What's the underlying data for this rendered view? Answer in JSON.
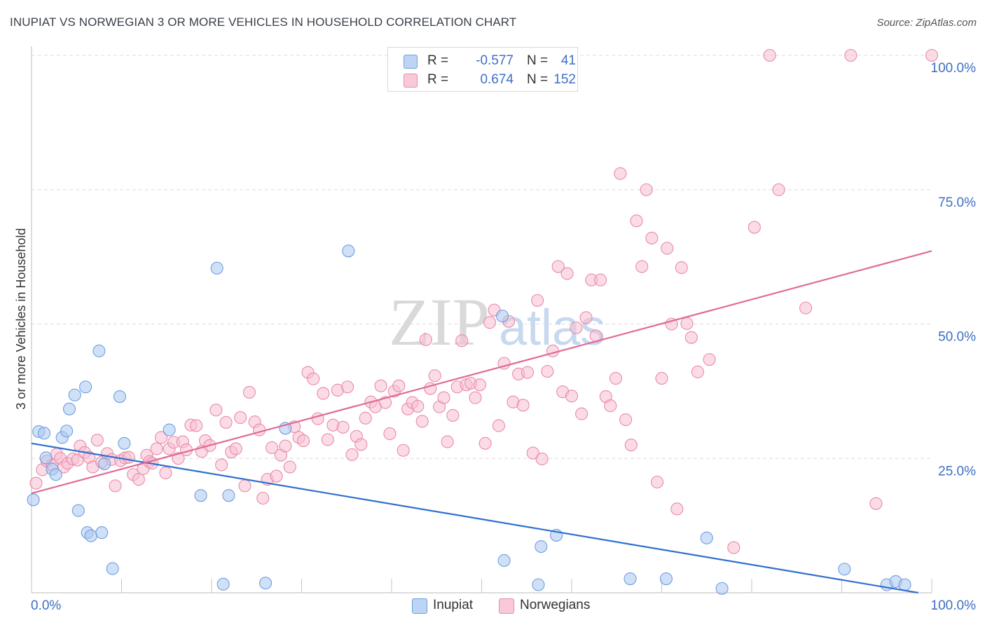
{
  "title": "INUPIAT VS NORWEGIAN 3 OR MORE VEHICLES IN HOUSEHOLD CORRELATION CHART",
  "source": "Source: ZipAtlas.com",
  "watermark": {
    "zip": "ZIP",
    "atlas": "atlas"
  },
  "legend": {
    "rows": [
      {
        "r_label": "R =",
        "r_value": "-0.577",
        "n_label": "N =",
        "n_value": "41",
        "color": "#a9c8f0",
        "border": "#6f9ee0"
      },
      {
        "r_label": "R =",
        "r_value": "0.674",
        "n_label": "N =",
        "n_value": "152",
        "color": "#f7bfd1",
        "border": "#e88aa8"
      }
    ]
  },
  "bottom_legend": {
    "inupiat": "Inupiat",
    "norwegians": "Norwegians"
  },
  "chart_data": {
    "type": "scatter",
    "ylabel": "3 or more Vehicles in Household",
    "x_tick_labels": [
      "0.0%",
      "100.0%"
    ],
    "y_tick_labels": [
      "25.0%",
      "50.0%",
      "75.0%",
      "100.0%"
    ],
    "y_ticks": [
      25,
      50,
      75,
      100
    ],
    "xlim": [
      0,
      100
    ],
    "ylim": [
      0,
      100
    ],
    "grid": true,
    "series": [
      {
        "name": "Inupiat",
        "color": "#a9c8f0",
        "edge": "#6f9ee0",
        "line_color": "#2f6fd0",
        "trend": [
          [
            0,
            27.8
          ],
          [
            98.5,
            0
          ]
        ],
        "points": [
          [
            0.2,
            17.3
          ],
          [
            0.8,
            30
          ],
          [
            1.4,
            29.7
          ],
          [
            1.6,
            25.1
          ],
          [
            2.3,
            23
          ],
          [
            2.7,
            22
          ],
          [
            3.4,
            28.9
          ],
          [
            3.9,
            30.1
          ],
          [
            4.2,
            34.2
          ],
          [
            4.8,
            36.8
          ],
          [
            5.2,
            15.3
          ],
          [
            6,
            38.3
          ],
          [
            6.2,
            11.2
          ],
          [
            6.6,
            10.6
          ],
          [
            7.5,
            45
          ],
          [
            7.8,
            11.2
          ],
          [
            8.1,
            24
          ],
          [
            9,
            4.5
          ],
          [
            9.8,
            36.5
          ],
          [
            10.3,
            27.8
          ],
          [
            15.3,
            30.3
          ],
          [
            18.8,
            18.1
          ],
          [
            20.6,
            60.4
          ],
          [
            21.3,
            1.6
          ],
          [
            21.9,
            18.1
          ],
          [
            26,
            1.8
          ],
          [
            28.2,
            30.6
          ],
          [
            35.2,
            63.6
          ],
          [
            52.3,
            51.5
          ],
          [
            52.5,
            6
          ],
          [
            56.3,
            1.5
          ],
          [
            56.6,
            8.6
          ],
          [
            58.3,
            10.7
          ],
          [
            66.5,
            2.6
          ],
          [
            70.5,
            2.6
          ],
          [
            75,
            10.2
          ],
          [
            76.7,
            0.8
          ],
          [
            90.3,
            4.4
          ],
          [
            95,
            1.5
          ],
          [
            96,
            2.1
          ],
          [
            97,
            1.5
          ]
        ]
      },
      {
        "name": "Norwegians",
        "color": "#f7bfd1",
        "edge": "#e88aa8",
        "line_color": "#e06b94",
        "trend": [
          [
            0,
            18.5
          ],
          [
            100,
            63.6
          ]
        ],
        "points": [
          [
            0.5,
            20.4
          ],
          [
            1.2,
            22.9
          ],
          [
            1.7,
            24.5
          ],
          [
            2.3,
            23.8
          ],
          [
            2.8,
            25.8
          ],
          [
            3.2,
            25
          ],
          [
            3.6,
            23.4
          ],
          [
            4,
            24.1
          ],
          [
            4.6,
            24.9
          ],
          [
            5.1,
            24.7
          ],
          [
            5.4,
            27.3
          ],
          [
            5.9,
            26.1
          ],
          [
            6.4,
            25.2
          ],
          [
            6.8,
            23.4
          ],
          [
            7.3,
            28.4
          ],
          [
            7.8,
            24.3
          ],
          [
            8.4,
            25.9
          ],
          [
            8.9,
            24.8
          ],
          [
            9.3,
            19.9
          ],
          [
            9.9,
            24.6
          ],
          [
            10.4,
            25.1
          ],
          [
            10.8,
            25.2
          ],
          [
            11.3,
            22
          ],
          [
            11.9,
            21.1
          ],
          [
            12.4,
            23.1
          ],
          [
            12.8,
            25.6
          ],
          [
            13.1,
            24.4
          ],
          [
            13.4,
            24.1
          ],
          [
            13.9,
            26.8
          ],
          [
            14.4,
            28.9
          ],
          [
            14.9,
            22.3
          ],
          [
            15.3,
            26.8
          ],
          [
            15.8,
            28
          ],
          [
            16.3,
            25
          ],
          [
            16.8,
            28.1
          ],
          [
            17.2,
            26.6
          ],
          [
            17.7,
            31.2
          ],
          [
            18.3,
            31.1
          ],
          [
            18.9,
            26.3
          ],
          [
            19.3,
            28.3
          ],
          [
            19.8,
            27.4
          ],
          [
            20.5,
            34
          ],
          [
            21.1,
            23.8
          ],
          [
            21.6,
            31.7
          ],
          [
            22.2,
            26.2
          ],
          [
            22.7,
            26.8
          ],
          [
            23.2,
            32.6
          ],
          [
            23.7,
            19.9
          ],
          [
            24.2,
            37.3
          ],
          [
            24.8,
            31.8
          ],
          [
            25.3,
            30.3
          ],
          [
            25.7,
            17.6
          ],
          [
            26.2,
            21.1
          ],
          [
            26.7,
            27
          ],
          [
            27.2,
            21.7
          ],
          [
            27.7,
            25.6
          ],
          [
            28.2,
            27.3
          ],
          [
            28.7,
            23.4
          ],
          [
            29.2,
            30.9
          ],
          [
            29.7,
            28.9
          ],
          [
            30.2,
            28.3
          ],
          [
            30.7,
            41
          ],
          [
            31.3,
            39.8
          ],
          [
            31.8,
            32.4
          ],
          [
            32.4,
            37.1
          ],
          [
            32.9,
            28.5
          ],
          [
            33.5,
            31.2
          ],
          [
            34,
            37.7
          ],
          [
            34.6,
            30.8
          ],
          [
            35.1,
            38.3
          ],
          [
            35.6,
            25.7
          ],
          [
            36.1,
            29.1
          ],
          [
            36.6,
            27.6
          ],
          [
            37.1,
            32.5
          ],
          [
            37.7,
            35.5
          ],
          [
            38.2,
            34.6
          ],
          [
            38.8,
            38.5
          ],
          [
            39.3,
            35.4
          ],
          [
            39.8,
            29.6
          ],
          [
            40.3,
            37.5
          ],
          [
            40.8,
            38.5
          ],
          [
            41.3,
            26.5
          ],
          [
            41.8,
            34.2
          ],
          [
            42.3,
            35.4
          ],
          [
            42.9,
            34.7
          ],
          [
            43.4,
            31.9
          ],
          [
            43.8,
            47.1
          ],
          [
            44.3,
            38
          ],
          [
            44.8,
            40.4
          ],
          [
            45.3,
            34.6
          ],
          [
            45.8,
            36.3
          ],
          [
            46.2,
            28.1
          ],
          [
            46.8,
            33
          ],
          [
            47.3,
            38.3
          ],
          [
            47.8,
            46.9
          ],
          [
            48.3,
            38.7
          ],
          [
            48.8,
            39
          ],
          [
            49.3,
            36.3
          ],
          [
            49.8,
            38.7
          ],
          [
            50.4,
            27.8
          ],
          [
            50.9,
            50.3
          ],
          [
            51.4,
            52.6
          ],
          [
            51.9,
            31.1
          ],
          [
            52.5,
            42.7
          ],
          [
            53,
            50.5
          ],
          [
            53.5,
            35.5
          ],
          [
            54.1,
            40.7
          ],
          [
            54.6,
            34.9
          ],
          [
            55.1,
            41
          ],
          [
            55.7,
            26
          ],
          [
            56.2,
            54.4
          ],
          [
            56.7,
            24.9
          ],
          [
            57.3,
            41.2
          ],
          [
            57.9,
            45
          ],
          [
            58.5,
            60.7
          ],
          [
            59,
            37.4
          ],
          [
            59.5,
            59.4
          ],
          [
            60,
            36.6
          ],
          [
            60.5,
            49.3
          ],
          [
            61.1,
            33.3
          ],
          [
            61.6,
            51.2
          ],
          [
            62.2,
            58.2
          ],
          [
            62.7,
            47.8
          ],
          [
            63.2,
            58.2
          ],
          [
            63.8,
            36.5
          ],
          [
            64.3,
            34.8
          ],
          [
            64.9,
            39.9
          ],
          [
            65.4,
            78
          ],
          [
            66,
            32.2
          ],
          [
            66.6,
            27.5
          ],
          [
            67.2,
            69.2
          ],
          [
            67.8,
            60.7
          ],
          [
            68.3,
            75
          ],
          [
            68.9,
            66
          ],
          [
            69.5,
            20.6
          ],
          [
            70,
            39.9
          ],
          [
            70.6,
            64.1
          ],
          [
            71.1,
            50
          ],
          [
            71.7,
            15.6
          ],
          [
            72.2,
            60.5
          ],
          [
            72.8,
            50.1
          ],
          [
            73.3,
            47.5
          ],
          [
            74,
            41.1
          ],
          [
            75.3,
            43.4
          ],
          [
            78,
            8.4
          ],
          [
            80.3,
            68
          ],
          [
            82,
            100
          ],
          [
            83,
            75
          ],
          [
            86,
            53
          ],
          [
            91,
            100
          ],
          [
            93.8,
            16.6
          ],
          [
            100,
            100
          ]
        ]
      }
    ]
  }
}
